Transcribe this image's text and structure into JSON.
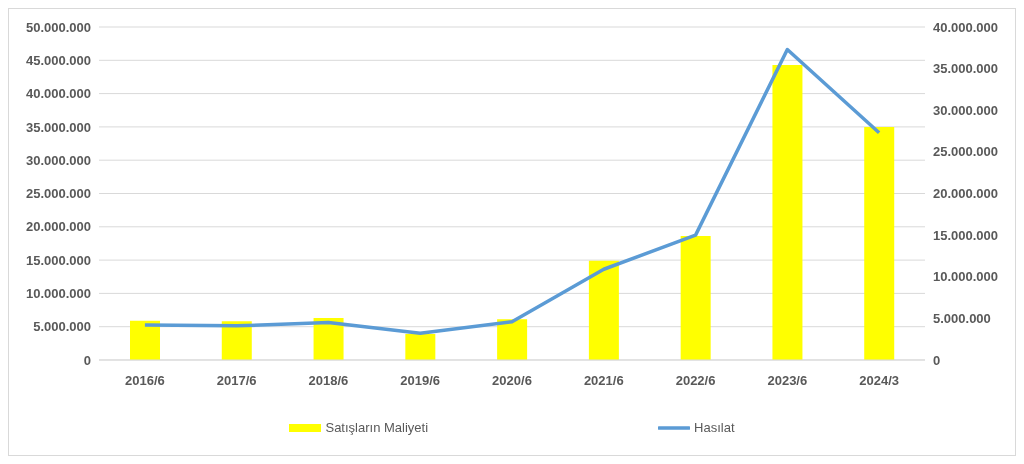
{
  "chart_data": {
    "type": "bar",
    "categories": [
      "2016/6",
      "2017/6",
      "2018/6",
      "2019/6",
      "2020/6",
      "2021/6",
      "2022/6",
      "2023/6",
      "2024/3"
    ],
    "series": [
      {
        "name": "Satışların Maliyeti",
        "color": "#ffff00",
        "values": [
          5900000,
          5800000,
          6300000,
          3900000,
          6100000,
          14900000,
          18600000,
          44300000,
          35000000
        ]
      },
      {
        "name": "Hasılat",
        "type": "line",
        "axis": "y2",
        "color": "#5b9bd5",
        "values": [
          4200000,
          4100000,
          4500000,
          3200000,
          4600000,
          10900000,
          15000000,
          37300000,
          27300000
        ]
      }
    ],
    "ylim": [
      0,
      50000000
    ],
    "yticks": [
      {
        "value": 0,
        "label": "0"
      },
      {
        "value": 5000000,
        "label": "5.000.000"
      },
      {
        "value": 10000000,
        "label": "10.000.000"
      },
      {
        "value": 15000000,
        "label": "15.000.000"
      },
      {
        "value": 20000000,
        "label": "20.000.000"
      },
      {
        "value": 25000000,
        "label": "25.000.000"
      },
      {
        "value": 30000000,
        "label": "30.000.000"
      },
      {
        "value": 35000000,
        "label": "35.000.000"
      },
      {
        "value": 40000000,
        "label": "40.000.000"
      },
      {
        "value": 45000000,
        "label": "45.000.000"
      },
      {
        "value": 50000000,
        "label": "50.000.000"
      }
    ],
    "y2lim": [
      0,
      40000000
    ],
    "y2ticks": [
      {
        "value": 0,
        "label": "0"
      },
      {
        "value": 5000000,
        "label": "5.000.000"
      },
      {
        "value": 10000000,
        "label": "10.000.000"
      },
      {
        "value": 15000000,
        "label": "15.000.000"
      },
      {
        "value": 20000000,
        "label": "20.000.000"
      },
      {
        "value": 25000000,
        "label": "25.000.000"
      },
      {
        "value": 30000000,
        "label": "30.000.000"
      },
      {
        "value": 35000000,
        "label": "35.000.000"
      },
      {
        "value": 40000000,
        "label": "40.000.000"
      }
    ],
    "grid": "y",
    "legend": "bottom",
    "marker": "none",
    "line_style": "solid"
  }
}
